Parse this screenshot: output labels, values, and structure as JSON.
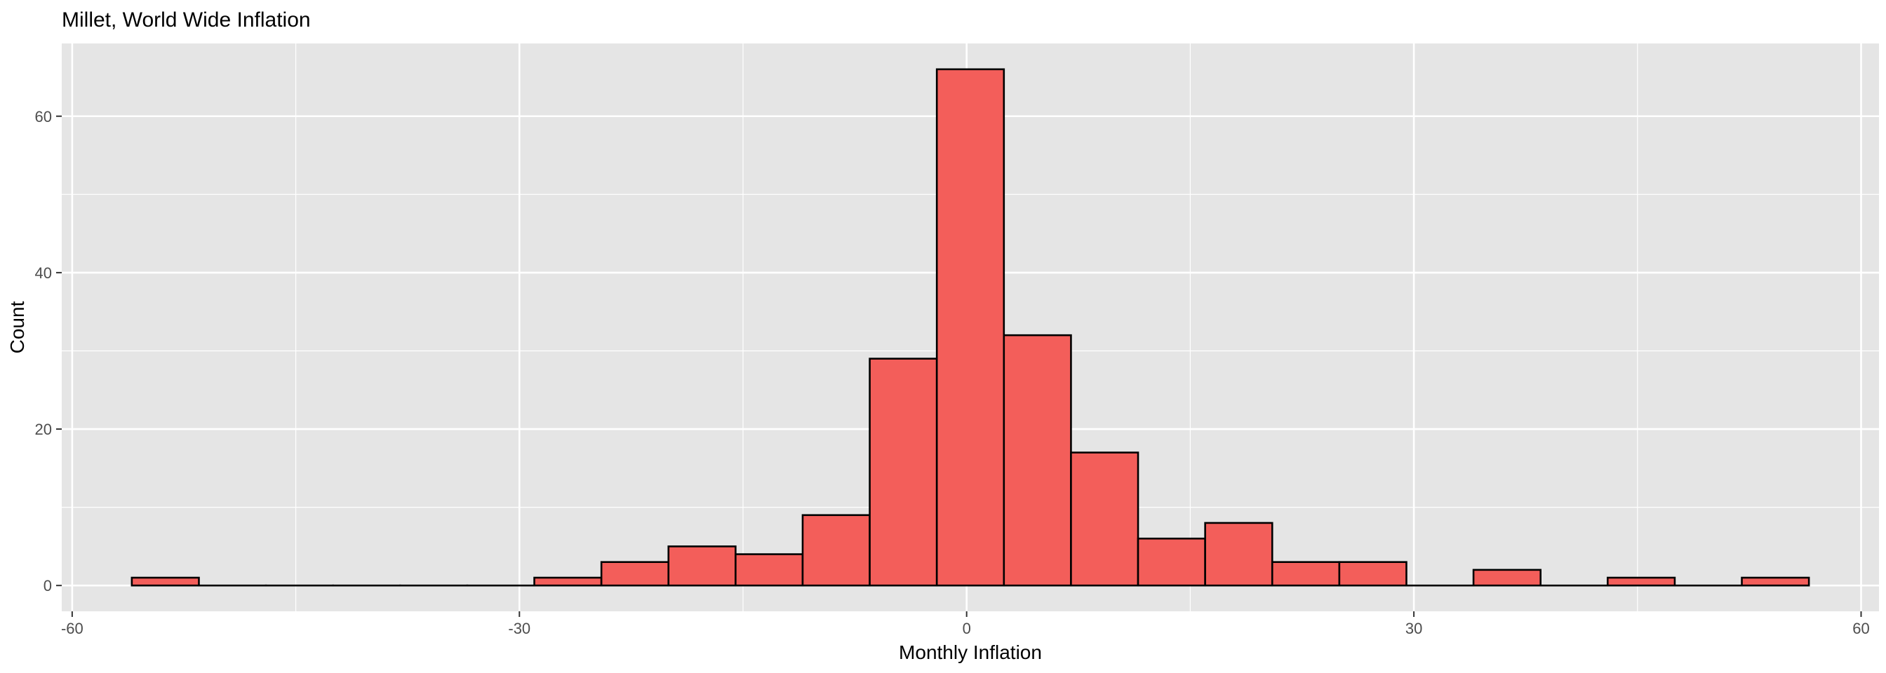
{
  "chart_data": {
    "type": "bar",
    "title": "Millet, World Wide Inflation",
    "xlabel": "Monthly Inflation",
    "ylabel": "Count",
    "xlim": [
      -60.7,
      61.2
    ],
    "ylim": [
      -3.3,
      69.3
    ],
    "x_ticks": [
      -60,
      -30,
      0,
      30,
      60
    ],
    "x_tick_labels": [
      "-60",
      "-30",
      "0",
      "30",
      "60"
    ],
    "y_ticks": [
      0,
      20,
      40,
      60
    ],
    "y_tick_labels": [
      "0",
      "20",
      "40",
      "60"
    ],
    "grid": true,
    "bin_width": 4.5,
    "bins": [
      {
        "x0": -56.0,
        "x1": -51.5,
        "count": 1
      },
      {
        "x0": -51.5,
        "x1": -47.0,
        "count": 0
      },
      {
        "x0": -47.0,
        "x1": -42.5,
        "count": 0
      },
      {
        "x0": -42.5,
        "x1": -38.0,
        "count": 0
      },
      {
        "x0": -38.0,
        "x1": -33.5,
        "count": 0
      },
      {
        "x0": -33.5,
        "x1": -29.0,
        "count": 0
      },
      {
        "x0": -29.0,
        "x1": -24.5,
        "count": 1
      },
      {
        "x0": -24.5,
        "x1": -20.0,
        "count": 3
      },
      {
        "x0": -20.0,
        "x1": -15.5,
        "count": 5
      },
      {
        "x0": -15.5,
        "x1": -11.0,
        "count": 4
      },
      {
        "x0": -11.0,
        "x1": -6.5,
        "count": 9
      },
      {
        "x0": -6.5,
        "x1": -2.0,
        "count": 29
      },
      {
        "x0": -2.0,
        "x1": 2.5,
        "count": 66
      },
      {
        "x0": 2.5,
        "x1": 7.0,
        "count": 32
      },
      {
        "x0": 7.0,
        "x1": 11.5,
        "count": 17
      },
      {
        "x0": 11.5,
        "x1": 16.0,
        "count": 6
      },
      {
        "x0": 16.0,
        "x1": 20.5,
        "count": 8
      },
      {
        "x0": 20.5,
        "x1": 25.0,
        "count": 3
      },
      {
        "x0": 25.0,
        "x1": 29.5,
        "count": 3
      },
      {
        "x0": 29.5,
        "x1": 34.0,
        "count": 0
      },
      {
        "x0": 34.0,
        "x1": 38.5,
        "count": 2
      },
      {
        "x0": 38.5,
        "x1": 43.0,
        "count": 0
      },
      {
        "x0": 43.0,
        "x1": 47.5,
        "count": 1
      },
      {
        "x0": 47.5,
        "x1": 52.0,
        "count": 0
      },
      {
        "x0": 52.0,
        "x1": 56.5,
        "count": 1
      }
    ],
    "colors": {
      "fill": "#f35e5a",
      "outline": "#000000",
      "panel": "#e5e5e5",
      "grid": "#ffffff"
    }
  }
}
